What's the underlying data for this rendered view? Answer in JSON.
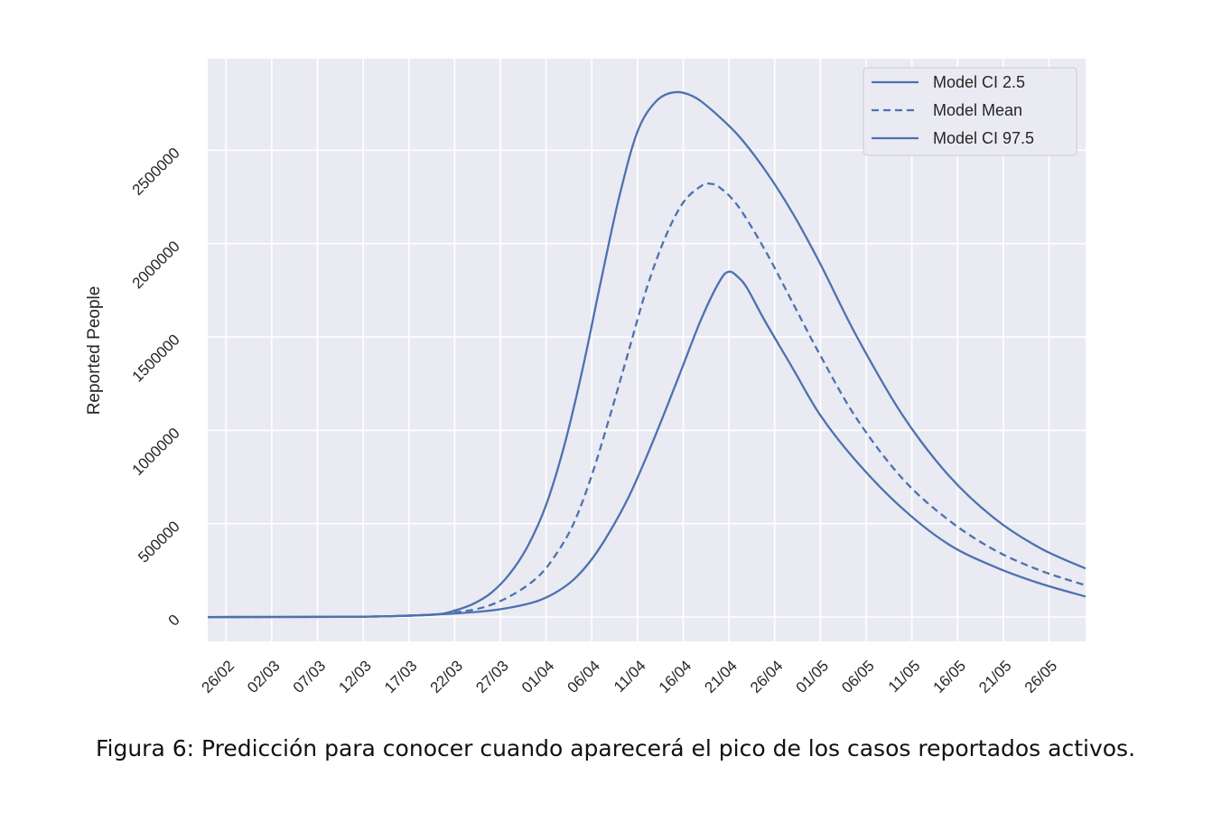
{
  "figure": {
    "caption": "Figura 6: Predicción para conocer cuando aparecerá el pico de los casos reportados activos."
  },
  "chart_data": {
    "type": "line",
    "title": "",
    "xlabel": "",
    "ylabel": "Reported People",
    "x_start": "2020-02-24",
    "x_end": "2020-05-30",
    "xticks": [
      "26/02",
      "02/03",
      "07/03",
      "12/03",
      "17/03",
      "22/03",
      "27/03",
      "01/04",
      "06/04",
      "11/04",
      "16/04",
      "21/04",
      "26/04",
      "01/05",
      "06/05",
      "11/05",
      "16/05",
      "21/05",
      "26/05"
    ],
    "yticks": [
      "0",
      "500000",
      "1000000",
      "1500000",
      "2000000",
      "2500000"
    ],
    "ylim": [
      -130000,
      2990000
    ],
    "grid": true,
    "legend_position": "top-right",
    "series": [
      {
        "name": "Model CI 2.5",
        "style": "solid",
        "color": "#4c72b0",
        "points": [
          [
            "2020-02-24",
            0
          ],
          [
            "2020-03-10",
            1500
          ],
          [
            "2020-03-15",
            5000
          ],
          [
            "2020-03-20",
            14000
          ],
          [
            "2020-03-25",
            30000
          ],
          [
            "2020-03-28",
            50000
          ],
          [
            "2020-03-31",
            85000
          ],
          [
            "2020-04-02",
            130000
          ],
          [
            "2020-04-04",
            200000
          ],
          [
            "2020-04-06",
            310000
          ],
          [
            "2020-04-08",
            460000
          ],
          [
            "2020-04-10",
            640000
          ],
          [
            "2020-04-12",
            860000
          ],
          [
            "2020-04-14",
            1100000
          ],
          [
            "2020-04-16",
            1350000
          ],
          [
            "2020-04-18",
            1600000
          ],
          [
            "2020-04-20",
            1800000
          ],
          [
            "2020-04-21",
            1850000
          ],
          [
            "2020-04-22",
            1820000
          ],
          [
            "2020-04-23",
            1760000
          ],
          [
            "2020-04-25",
            1580000
          ],
          [
            "2020-04-28",
            1330000
          ],
          [
            "2020-05-01",
            1080000
          ],
          [
            "2020-05-05",
            830000
          ],
          [
            "2020-05-10",
            580000
          ],
          [
            "2020-05-15",
            390000
          ],
          [
            "2020-05-20",
            270000
          ],
          [
            "2020-05-25",
            180000
          ],
          [
            "2020-05-30",
            110000
          ]
        ]
      },
      {
        "name": "Model Mean",
        "style": "dashed",
        "color": "#4c72b0",
        "points": [
          [
            "2020-02-24",
            0
          ],
          [
            "2020-03-10",
            1500
          ],
          [
            "2020-03-15",
            5000
          ],
          [
            "2020-03-20",
            14000
          ],
          [
            "2020-03-22",
            25000
          ],
          [
            "2020-03-25",
            50000
          ],
          [
            "2020-03-28",
            110000
          ],
          [
            "2020-03-31",
            210000
          ],
          [
            "2020-04-02",
            330000
          ],
          [
            "2020-04-04",
            500000
          ],
          [
            "2020-04-06",
            760000
          ],
          [
            "2020-04-08",
            1080000
          ],
          [
            "2020-04-10",
            1420000
          ],
          [
            "2020-04-12",
            1760000
          ],
          [
            "2020-04-14",
            2030000
          ],
          [
            "2020-04-16",
            2220000
          ],
          [
            "2020-04-18",
            2310000
          ],
          [
            "2020-04-19",
            2320000
          ],
          [
            "2020-04-20",
            2300000
          ],
          [
            "2020-04-22",
            2200000
          ],
          [
            "2020-04-25",
            1960000
          ],
          [
            "2020-04-28",
            1680000
          ],
          [
            "2020-05-01",
            1400000
          ],
          [
            "2020-05-05",
            1060000
          ],
          [
            "2020-05-10",
            740000
          ],
          [
            "2020-05-15",
            520000
          ],
          [
            "2020-05-20",
            360000
          ],
          [
            "2020-05-25",
            250000
          ],
          [
            "2020-05-30",
            170000
          ]
        ]
      },
      {
        "name": "Model CI 97.5",
        "style": "solid",
        "color": "#4c72b0",
        "points": [
          [
            "2020-02-24",
            0
          ],
          [
            "2020-03-10",
            1500
          ],
          [
            "2020-03-15",
            5000
          ],
          [
            "2020-03-20",
            14000
          ],
          [
            "2020-03-22",
            35000
          ],
          [
            "2020-03-24",
            70000
          ],
          [
            "2020-03-26",
            130000
          ],
          [
            "2020-03-28",
            230000
          ],
          [
            "2020-03-30",
            380000
          ],
          [
            "2020-04-01",
            600000
          ],
          [
            "2020-04-03",
            920000
          ],
          [
            "2020-04-05",
            1330000
          ],
          [
            "2020-04-07",
            1800000
          ],
          [
            "2020-04-09",
            2250000
          ],
          [
            "2020-04-11",
            2600000
          ],
          [
            "2020-04-13",
            2760000
          ],
          [
            "2020-04-15",
            2810000
          ],
          [
            "2020-04-17",
            2790000
          ],
          [
            "2020-04-19",
            2720000
          ],
          [
            "2020-04-22",
            2580000
          ],
          [
            "2020-04-25",
            2390000
          ],
          [
            "2020-04-28",
            2160000
          ],
          [
            "2020-05-01",
            1890000
          ],
          [
            "2020-05-05",
            1500000
          ],
          [
            "2020-05-10",
            1080000
          ],
          [
            "2020-05-15",
            760000
          ],
          [
            "2020-05-20",
            530000
          ],
          [
            "2020-05-25",
            370000
          ],
          [
            "2020-05-30",
            260000
          ]
        ]
      }
    ]
  }
}
